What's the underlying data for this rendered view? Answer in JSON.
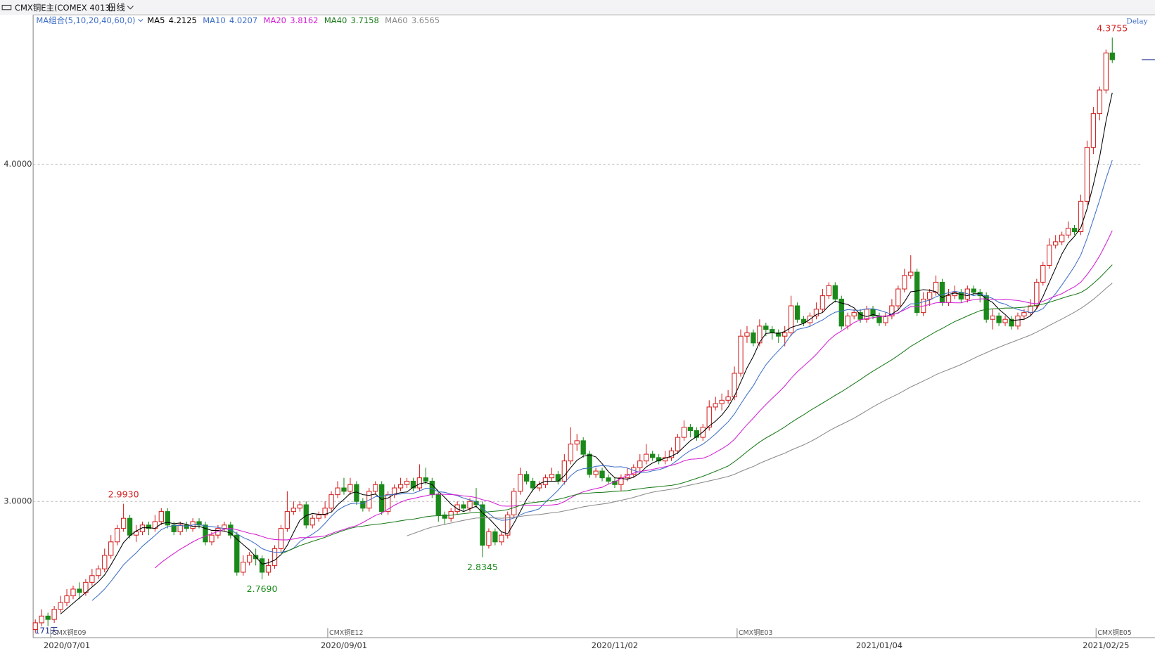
{
  "chart_data": {
    "type": "candlestick",
    "title": "CMX铜E主(COMEX 4013)",
    "interval": "日线",
    "ma_group_label": "MA组合(5,10,20,40,60,0)",
    "delay_label": "Delay",
    "bar_count_label": "171天",
    "ylim": [
      2.596,
      4.443
    ],
    "yticks": [
      {
        "value": 3,
        "label": "3.0000"
      },
      {
        "value": 4,
        "label": "4.0000"
      }
    ],
    "grid": true,
    "up_color": "#d42020",
    "down_color": "#1a8a1a",
    "categories": [
      null,
      null,
      null,
      null,
      null,
      "2020/07/01",
      null,
      null,
      null,
      null,
      null,
      null,
      null,
      null,
      null,
      null,
      null,
      null,
      null,
      null,
      null,
      null,
      null,
      null,
      null,
      null,
      null,
      null,
      null,
      null,
      null,
      null,
      null,
      null,
      null,
      null,
      null,
      null,
      null,
      null,
      null,
      null,
      null,
      null,
      null,
      null,
      null,
      null,
      null,
      "2020/09/01",
      null,
      null,
      null,
      null,
      null,
      null,
      null,
      null,
      null,
      null,
      null,
      null,
      null,
      null,
      null,
      null,
      null,
      null,
      null,
      null,
      null,
      null,
      null,
      null,
      null,
      null,
      null,
      null,
      null,
      null,
      null,
      null,
      null,
      null,
      null,
      null,
      null,
      null,
      null,
      null,
      null,
      null,
      "2020/11/02",
      null,
      null,
      null,
      null,
      null,
      null,
      null,
      null,
      null,
      null,
      null,
      null,
      null,
      null,
      null,
      null,
      null,
      null,
      null,
      null,
      null,
      null,
      null,
      null,
      null,
      null,
      null,
      null,
      null,
      null,
      null,
      null,
      null,
      null,
      null,
      null,
      null,
      null,
      null,
      null,
      null,
      "2021/01/04",
      null,
      null,
      null,
      null,
      null,
      null,
      null,
      null,
      null,
      null,
      null,
      null,
      null,
      null,
      null,
      null,
      null,
      null,
      null,
      null,
      null,
      null,
      null,
      null,
      null,
      null,
      null,
      null,
      null,
      null,
      null,
      null,
      null,
      null,
      null,
      "2021/02/25",
      null
    ],
    "ohlc": [
      [
        2.62,
        2.65,
        2.61,
        2.64
      ],
      [
        2.64,
        2.68,
        2.63,
        2.66
      ],
      [
        2.66,
        2.67,
        2.63,
        2.65
      ],
      [
        2.65,
        2.69,
        2.64,
        2.68
      ],
      [
        2.68,
        2.72,
        2.67,
        2.7
      ],
      [
        2.7,
        2.74,
        2.69,
        2.72
      ],
      [
        2.72,
        2.75,
        2.71,
        2.74
      ],
      [
        2.74,
        2.76,
        2.71,
        2.73
      ],
      [
        2.73,
        2.77,
        2.72,
        2.76
      ],
      [
        2.76,
        2.8,
        2.75,
        2.78
      ],
      [
        2.78,
        2.81,
        2.77,
        2.8
      ],
      [
        2.8,
        2.86,
        2.79,
        2.84
      ],
      [
        2.84,
        2.9,
        2.83,
        2.88
      ],
      [
        2.88,
        2.93,
        2.87,
        2.92
      ],
      [
        2.92,
        2.993,
        2.91,
        2.95
      ],
      [
        2.95,
        2.96,
        2.89,
        2.9
      ],
      [
        2.9,
        2.93,
        2.88,
        2.91
      ],
      [
        2.91,
        2.94,
        2.9,
        2.93
      ],
      [
        2.93,
        2.94,
        2.9,
        2.92
      ],
      [
        2.92,
        2.96,
        2.91,
        2.94
      ],
      [
        2.94,
        2.98,
        2.93,
        2.97
      ],
      [
        2.97,
        2.98,
        2.92,
        2.93
      ],
      [
        2.93,
        2.94,
        2.9,
        2.91
      ],
      [
        2.91,
        2.94,
        2.9,
        2.93
      ],
      [
        2.93,
        2.94,
        2.91,
        2.92
      ],
      [
        2.92,
        2.95,
        2.91,
        2.94
      ],
      [
        2.94,
        2.95,
        2.92,
        2.93
      ],
      [
        2.93,
        2.94,
        2.87,
        2.88
      ],
      [
        2.88,
        2.91,
        2.87,
        2.9
      ],
      [
        2.9,
        2.93,
        2.89,
        2.92
      ],
      [
        2.92,
        2.94,
        2.91,
        2.93
      ],
      [
        2.93,
        2.94,
        2.89,
        2.9
      ],
      [
        2.9,
        2.91,
        2.78,
        2.79
      ],
      [
        2.79,
        2.84,
        2.78,
        2.82
      ],
      [
        2.82,
        2.85,
        2.81,
        2.84
      ],
      [
        2.84,
        2.86,
        2.81,
        2.83
      ],
      [
        2.83,
        2.84,
        2.769,
        2.79
      ],
      [
        2.79,
        2.83,
        2.78,
        2.81
      ],
      [
        2.81,
        2.87,
        2.8,
        2.86
      ],
      [
        2.86,
        2.93,
        2.85,
        2.92
      ],
      [
        2.92,
        3.03,
        2.91,
        2.97
      ],
      [
        2.97,
        3.0,
        2.96,
        2.98
      ],
      [
        2.98,
        3.0,
        2.97,
        2.99
      ],
      [
        2.99,
        3.0,
        2.92,
        2.93
      ],
      [
        2.93,
        2.96,
        2.92,
        2.95
      ],
      [
        2.95,
        2.97,
        2.94,
        2.96
      ],
      [
        2.96,
        3.0,
        2.95,
        2.98
      ],
      [
        2.98,
        3.03,
        2.97,
        3.02
      ],
      [
        3.02,
        3.06,
        3.01,
        3.04
      ],
      [
        3.04,
        3.07,
        3.02,
        3.03
      ],
      [
        3.03,
        3.07,
        3.02,
        3.05
      ],
      [
        3.05,
        3.06,
        2.99,
        3.0
      ],
      [
        3.0,
        3.01,
        2.97,
        2.98
      ],
      [
        2.98,
        3.04,
        2.97,
        3.03
      ],
      [
        3.03,
        3.06,
        3.02,
        3.05
      ],
      [
        3.05,
        3.06,
        2.96,
        2.97
      ],
      [
        2.97,
        3.03,
        2.96,
        3.02
      ],
      [
        3.02,
        3.05,
        3.01,
        3.04
      ],
      [
        3.04,
        3.07,
        3.03,
        3.05
      ],
      [
        3.05,
        3.07,
        3.04,
        3.06
      ],
      [
        3.06,
        3.07,
        3.03,
        3.04
      ],
      [
        3.04,
        3.11,
        3.03,
        3.07
      ],
      [
        3.07,
        3.1,
        3.05,
        3.06
      ],
      [
        3.06,
        3.07,
        3.01,
        3.02
      ],
      [
        3.02,
        3.03,
        2.94,
        2.96
      ],
      [
        2.96,
        2.97,
        2.93,
        2.95
      ],
      [
        2.95,
        2.98,
        2.94,
        2.97
      ],
      [
        2.97,
        3.0,
        2.96,
        2.99
      ],
      [
        2.99,
        3.0,
        2.97,
        2.98
      ],
      [
        2.98,
        3.01,
        2.97,
        3.0
      ],
      [
        3.0,
        3.04,
        2.98,
        2.99
      ],
      [
        2.99,
        3.0,
        2.8345,
        2.87
      ],
      [
        2.87,
        2.92,
        2.86,
        2.91
      ],
      [
        2.91,
        2.92,
        2.87,
        2.88
      ],
      [
        2.88,
        2.91,
        2.87,
        2.9
      ],
      [
        2.9,
        2.97,
        2.89,
        2.96
      ],
      [
        2.96,
        3.04,
        2.95,
        3.03
      ],
      [
        3.03,
        3.1,
        3.02,
        3.08
      ],
      [
        3.08,
        3.09,
        3.05,
        3.06
      ],
      [
        3.06,
        3.07,
        3.03,
        3.04
      ],
      [
        3.04,
        3.06,
        3.03,
        3.05
      ],
      [
        3.05,
        3.08,
        3.04,
        3.07
      ],
      [
        3.07,
        3.1,
        3.06,
        3.08
      ],
      [
        3.08,
        3.09,
        3.05,
        3.06
      ],
      [
        3.06,
        3.14,
        3.05,
        3.12
      ],
      [
        3.12,
        3.22,
        3.11,
        3.17
      ],
      [
        3.17,
        3.2,
        3.15,
        3.18
      ],
      [
        3.18,
        3.19,
        3.13,
        3.14
      ],
      [
        3.14,
        3.15,
        3.07,
        3.08
      ],
      [
        3.08,
        3.1,
        3.07,
        3.09
      ],
      [
        3.09,
        3.1,
        3.06,
        3.07
      ],
      [
        3.07,
        3.08,
        3.05,
        3.06
      ],
      [
        3.06,
        3.07,
        3.04,
        3.05
      ],
      [
        3.05,
        3.08,
        3.03,
        3.07
      ],
      [
        3.07,
        3.1,
        3.06,
        3.08
      ],
      [
        3.08,
        3.11,
        3.07,
        3.1
      ],
      [
        3.1,
        3.14,
        3.09,
        3.12
      ],
      [
        3.12,
        3.17,
        3.11,
        3.14
      ],
      [
        3.14,
        3.15,
        3.12,
        3.13
      ],
      [
        3.13,
        3.14,
        3.11,
        3.12
      ],
      [
        3.12,
        3.15,
        3.11,
        3.13
      ],
      [
        3.13,
        3.16,
        3.12,
        3.15
      ],
      [
        3.15,
        3.2,
        3.14,
        3.19
      ],
      [
        3.19,
        3.24,
        3.18,
        3.22
      ],
      [
        3.22,
        3.23,
        3.19,
        3.21
      ],
      [
        3.21,
        3.22,
        3.18,
        3.19
      ],
      [
        3.19,
        3.23,
        3.18,
        3.22
      ],
      [
        3.22,
        3.3,
        3.21,
        3.28
      ],
      [
        3.28,
        3.31,
        3.27,
        3.29
      ],
      [
        3.29,
        3.32,
        3.27,
        3.3
      ],
      [
        3.3,
        3.33,
        3.29,
        3.31
      ],
      [
        3.31,
        3.4,
        3.3,
        3.38
      ],
      [
        3.38,
        3.51,
        3.37,
        3.49
      ],
      [
        3.49,
        3.52,
        3.47,
        3.5
      ],
      [
        3.5,
        3.51,
        3.46,
        3.47
      ],
      [
        3.47,
        3.54,
        3.46,
        3.52
      ],
      [
        3.52,
        3.53,
        3.49,
        3.51
      ],
      [
        3.51,
        3.52,
        3.48,
        3.5
      ],
      [
        3.5,
        3.51,
        3.47,
        3.49
      ],
      [
        3.49,
        3.52,
        3.46,
        3.5
      ],
      [
        3.5,
        3.61,
        3.49,
        3.58
      ],
      [
        3.58,
        3.59,
        3.53,
        3.54
      ],
      [
        3.54,
        3.55,
        3.52,
        3.53
      ],
      [
        3.53,
        3.56,
        3.52,
        3.55
      ],
      [
        3.55,
        3.59,
        3.54,
        3.57
      ],
      [
        3.57,
        3.63,
        3.56,
        3.61
      ],
      [
        3.61,
        3.65,
        3.6,
        3.64
      ],
      [
        3.64,
        3.65,
        3.59,
        3.6
      ],
      [
        3.6,
        3.61,
        3.51,
        3.52
      ],
      [
        3.52,
        3.56,
        3.51,
        3.55
      ],
      [
        3.55,
        3.57,
        3.54,
        3.56
      ],
      [
        3.56,
        3.57,
        3.53,
        3.54
      ],
      [
        3.54,
        3.58,
        3.53,
        3.57
      ],
      [
        3.57,
        3.58,
        3.54,
        3.55
      ],
      [
        3.55,
        3.56,
        3.52,
        3.53
      ],
      [
        3.53,
        3.56,
        3.52,
        3.55
      ],
      [
        3.55,
        3.6,
        3.54,
        3.58
      ],
      [
        3.58,
        3.64,
        3.57,
        3.63
      ],
      [
        3.63,
        3.69,
        3.62,
        3.67
      ],
      [
        3.67,
        3.73,
        3.66,
        3.68
      ],
      [
        3.68,
        3.69,
        3.55,
        3.56
      ],
      [
        3.56,
        3.62,
        3.55,
        3.6
      ],
      [
        3.6,
        3.63,
        3.58,
        3.62
      ],
      [
        3.62,
        3.67,
        3.61,
        3.65
      ],
      [
        3.65,
        3.66,
        3.58,
        3.59
      ],
      [
        3.59,
        3.63,
        3.58,
        3.61
      ],
      [
        3.61,
        3.64,
        3.6,
        3.62
      ],
      [
        3.62,
        3.63,
        3.59,
        3.6
      ],
      [
        3.6,
        3.64,
        3.59,
        3.63
      ],
      [
        3.63,
        3.64,
        3.61,
        3.62
      ],
      [
        3.62,
        3.63,
        3.59,
        3.61
      ],
      [
        3.61,
        3.62,
        3.53,
        3.54
      ],
      [
        3.54,
        3.57,
        3.51,
        3.55
      ],
      [
        3.55,
        3.56,
        3.52,
        3.53
      ],
      [
        3.53,
        3.55,
        3.52,
        3.54
      ],
      [
        3.54,
        3.55,
        3.51,
        3.52
      ],
      [
        3.52,
        3.56,
        3.51,
        3.55
      ],
      [
        3.55,
        3.57,
        3.54,
        3.56
      ],
      [
        3.56,
        3.6,
        3.55,
        3.58
      ],
      [
        3.58,
        3.66,
        3.57,
        3.65
      ],
      [
        3.65,
        3.71,
        3.64,
        3.7
      ],
      [
        3.7,
        3.78,
        3.69,
        3.76
      ],
      [
        3.76,
        3.79,
        3.75,
        3.77
      ],
      [
        3.77,
        3.8,
        3.76,
        3.79
      ],
      [
        3.79,
        3.83,
        3.78,
        3.81
      ],
      [
        3.81,
        3.82,
        3.79,
        3.8
      ],
      [
        3.8,
        3.91,
        3.79,
        3.89
      ],
      [
        3.89,
        4.07,
        3.88,
        4.05
      ],
      [
        4.05,
        4.17,
        4.03,
        4.15
      ],
      [
        4.15,
        4.23,
        4.13,
        4.22
      ],
      [
        4.22,
        4.34,
        4.21,
        4.33
      ],
      [
        4.33,
        4.3755,
        4.3,
        4.31
      ]
    ],
    "ma": [
      {
        "name": "MA5",
        "value": 4.2125,
        "color": "#000000"
      },
      {
        "name": "MA10",
        "value": 4.0207,
        "color": "#3f6fc8"
      },
      {
        "name": "MA20",
        "value": 3.8162,
        "color": "#d41ed4"
      },
      {
        "name": "MA40",
        "value": 3.7158,
        "color": "#1a7a1a"
      },
      {
        "name": "MA60",
        "value": 3.6565,
        "color": "#8a8a8a"
      }
    ],
    "annotations": [
      {
        "index": 14,
        "value": 2.993,
        "label": "2.9930"
      },
      {
        "index": 36,
        "value": 2.769,
        "label": "2.7690"
      },
      {
        "index": 71,
        "value": 2.8345,
        "label": "2.8345"
      },
      {
        "index": 171,
        "value": 4.3755,
        "label": "4.3755"
      }
    ],
    "contracts": [
      {
        "index": 5,
        "label": "CMX铜E09"
      },
      {
        "index": 49,
        "label": "CMX铜E12"
      },
      {
        "index": 114,
        "label": "CMX铜E03"
      },
      {
        "index": 171,
        "label": "CMX铜E05"
      }
    ]
  }
}
